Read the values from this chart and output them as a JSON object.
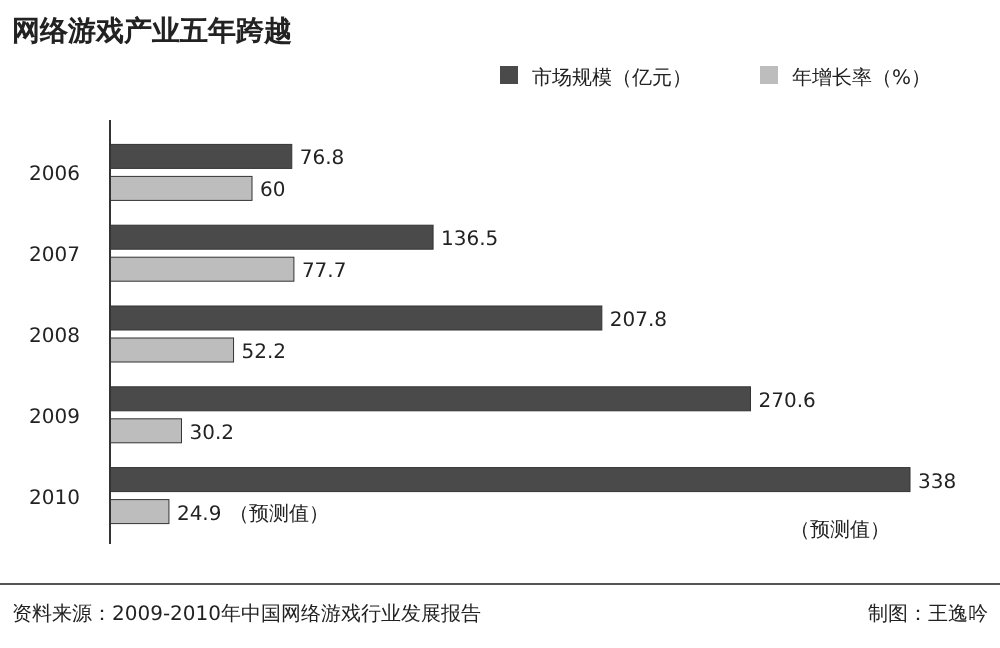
{
  "chart_data": {
    "type": "bar",
    "orientation": "horizontal",
    "title": "网络游戏产业五年跨越",
    "categories": [
      "2006",
      "2007",
      "2008",
      "2009",
      "2010"
    ],
    "series": [
      {
        "name": "市场规模（亿元）",
        "color": "#4a4a4a",
        "values": [
          76.8,
          136.5,
          207.8,
          270.6,
          338
        ]
      },
      {
        "name": "年增长率（%）",
        "color": "#bdbdbd",
        "values": [
          60,
          77.7,
          52.2,
          30.2,
          24.9
        ]
      }
    ],
    "data_labels": true,
    "legend": "top",
    "annotations": [
      "（预测值）",
      "（预测值）",
      "资料来源：2009-2010年中国网络游戏行业发展报告",
      "制图：王逸吟"
    ]
  }
}
